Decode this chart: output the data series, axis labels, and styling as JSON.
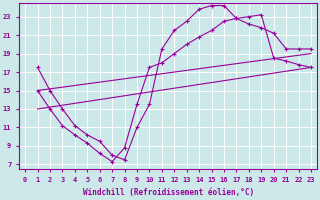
{
  "xlabel": "Windchill (Refroidissement éolien,°C)",
  "background_color": "#cce8e8",
  "line_color": "#990099",
  "grid_color": "#ffffff",
  "xlim": [
    -0.5,
    23.5
  ],
  "ylim": [
    6.5,
    24.5
  ],
  "yticks": [
    7,
    9,
    11,
    13,
    15,
    17,
    19,
    21,
    23
  ],
  "xticks": [
    0,
    1,
    2,
    3,
    4,
    5,
    6,
    7,
    8,
    9,
    10,
    11,
    12,
    13,
    14,
    15,
    16,
    17,
    18,
    19,
    20,
    21,
    22,
    23
  ],
  "curve1_x": [
    1,
    2,
    3,
    4,
    5,
    6,
    7,
    8,
    9,
    10,
    11,
    12,
    13,
    14,
    15,
    16,
    17,
    18,
    19,
    20,
    21,
    22,
    23
  ],
  "curve1_y": [
    17.5,
    15.0,
    13.0,
    11.2,
    10.2,
    9.5,
    8.0,
    7.5,
    11.0,
    13.5,
    19.5,
    21.5,
    22.5,
    23.8,
    24.2,
    24.2,
    22.8,
    22.2,
    21.8,
    21.2,
    19.5,
    19.5,
    19.5
  ],
  "curve2_x": [
    1,
    2,
    3,
    4,
    5,
    6,
    7,
    8,
    9,
    10,
    11,
    12,
    13,
    14,
    15,
    16,
    17,
    18,
    19,
    20,
    21,
    22,
    23
  ],
  "curve2_y": [
    15.0,
    13.0,
    11.2,
    10.2,
    9.3,
    8.2,
    7.3,
    8.8,
    13.5,
    17.5,
    18.0,
    19.0,
    20.0,
    20.8,
    21.5,
    22.5,
    22.8,
    23.0,
    23.2,
    18.5,
    18.2,
    17.8,
    17.5
  ],
  "line1_x": [
    1,
    23
  ],
  "line1_y": [
    15.0,
    19.0
  ],
  "line2_x": [
    1,
    23
  ],
  "line2_y": [
    13.0,
    17.5
  ]
}
